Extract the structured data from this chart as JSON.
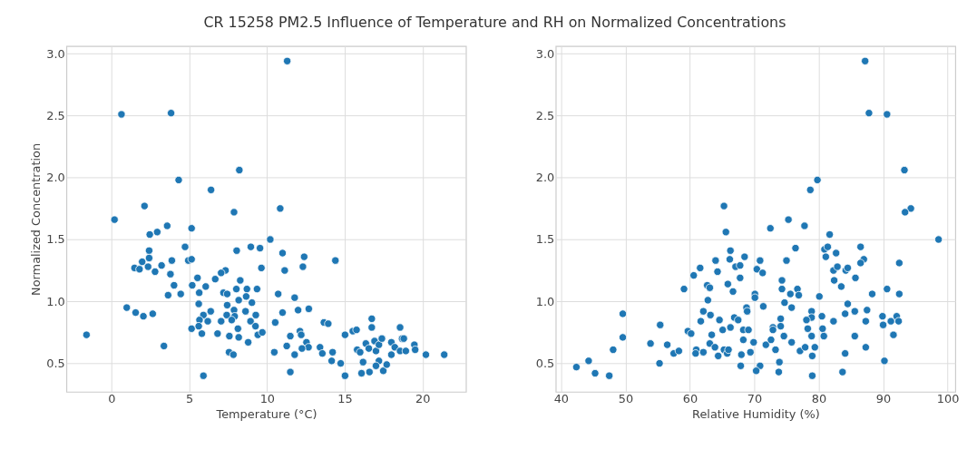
{
  "chart_data": [
    {
      "type": "scatter",
      "title": "CR 15258 PM2.5 Influence of Temperature and RH on Normalized Concentrations",
      "xlabel": "Temperature (°C)",
      "ylabel": "Normalized Concentration",
      "color": "#1f77b4",
      "marker": "circle",
      "grid": true,
      "xlim": [
        -2.9,
        22.8
      ],
      "xticks": [
        0,
        5,
        10,
        15,
        20
      ],
      "ylim": [
        0.27,
        3.06
      ],
      "yticks": [
        0.5,
        {
          "value": 1.0,
          "label": "1.0"
        },
        1.5,
        {
          "value": 2.0,
          "label": "2.0"
        },
        2.5,
        {
          "value": 3.0,
          "label": "3.0"
        }
      ],
      "x": [
        11.3,
        0.64,
        3.83,
        8.22,
        4.32,
        6.4,
        2.12,
        7.88,
        10.85,
        0.19,
        5.15,
        3.58,
        2.94,
        2.46,
        10.21,
        4.73,
        8.05,
        8.96,
        9.55,
        11.0,
        2.42,
        12.39,
        2.42,
        1.97,
        4.94,
        5.15,
        1.48,
        1.8,
        2.35,
        2.8,
        3.22,
        3.88,
        3.79,
        9.64,
        11.14,
        12.31,
        7.33,
        7.05,
        6.67,
        4.02,
        3.64,
        4.45,
        5.19,
        5.53,
        6.06,
        5.64,
        8.28,
        8.03,
        8.71,
        9.36,
        7.2,
        7.44,
        8.18,
        8.66,
        9.03,
        10.72,
        11.78,
        5.61,
        7.44,
        7.88,
        8.62,
        0.98,
        1.55,
        2.05,
        2.65,
        6.38,
        5.91,
        7.41,
        7.92,
        9.28,
        11.0,
        12.0,
        12.69,
        5.66,
        6.19,
        7.05,
        7.73,
        8.94,
        9.26,
        10.53,
        5.15,
        5.61,
        6.82,
        5.81,
        7.58,
        8.13,
        8.18,
        9.41,
        9.7,
        8.79,
        -1.61,
        3.37,
        7.56,
        7.84,
        10.47,
        5.91,
        11.5,
        12.12,
        12.2,
        11.27,
        11.78,
        12.54,
        12.67,
        12.25,
        11.5,
        13.66,
        13.94,
        14.4,
        13.41,
        13.56,
        14.22,
        14.16,
        14.74,
        15.02,
        15.02,
        15.52,
        15.76,
        15.8,
        15.99,
        16.18,
        16.08,
        16.36,
        16.55,
        16.59,
        16.74,
        16.74,
        16.92,
        17.01,
        17.2,
        17.39,
        17.2,
        17.01,
        17.48,
        17.7,
        18.0,
        18.0,
        18.22,
        18.56,
        18.69,
        18.8,
        18.56,
        18.93,
        19.48,
        19.53,
        20.22,
        21.4
      ],
      "values": [
        2.94,
        2.51,
        2.52,
        2.06,
        1.98,
        1.9,
        1.77,
        1.72,
        1.75,
        1.66,
        1.59,
        1.61,
        1.56,
        1.54,
        1.5,
        1.44,
        1.41,
        1.44,
        1.43,
        1.39,
        1.41,
        1.36,
        1.35,
        1.32,
        1.33,
        1.34,
        1.27,
        1.26,
        1.28,
        1.24,
        1.29,
        1.33,
        1.22,
        1.27,
        1.25,
        1.28,
        1.25,
        1.23,
        1.18,
        1.13,
        1.05,
        1.06,
        1.13,
        1.19,
        1.12,
        1.07,
        1.17,
        1.1,
        1.1,
        1.1,
        1.07,
        1.06,
        1.01,
        1.04,
        0.99,
        1.06,
        1.03,
        0.98,
        0.97,
        0.93,
        0.92,
        0.95,
        0.91,
        0.88,
        0.9,
        0.92,
        0.89,
        0.89,
        0.88,
        0.89,
        0.91,
        0.93,
        0.94,
        0.85,
        0.84,
        0.84,
        0.85,
        0.84,
        0.8,
        0.83,
        0.78,
        0.8,
        0.74,
        0.74,
        0.72,
        0.78,
        0.71,
        0.73,
        0.75,
        0.67,
        0.73,
        0.64,
        0.59,
        0.57,
        0.59,
        0.4,
        0.72,
        0.76,
        0.73,
        0.64,
        0.57,
        0.67,
        0.63,
        0.62,
        0.43,
        0.83,
        0.82,
        1.33,
        0.63,
        0.58,
        0.59,
        0.52,
        0.5,
        0.73,
        0.4,
        0.76,
        0.77,
        0.61,
        0.59,
        0.51,
        0.42,
        0.66,
        0.62,
        0.43,
        0.86,
        0.79,
        0.68,
        0.6,
        0.65,
        0.7,
        0.52,
        0.48,
        0.44,
        0.49,
        0.67,
        0.57,
        0.63,
        0.79,
        0.7,
        0.7,
        0.6,
        0.6,
        0.65,
        0.61,
        0.57,
        0.57
      ]
    },
    {
      "type": "scatter",
      "xlabel": "Relative Humidity (%)",
      "color": "#1f77b4",
      "marker": "circle",
      "grid": true,
      "xlim": [
        39.2,
        101.2
      ],
      "xticks": [
        40,
        50,
        60,
        70,
        80,
        90,
        100
      ],
      "ylim": [
        0.27,
        3.06
      ],
      "yticks": [
        0.5,
        {
          "value": 1.0,
          "label": "1.0"
        },
        1.5,
        {
          "value": 2.0,
          "label": "2.0"
        },
        2.5,
        {
          "value": 3.0,
          "label": "3.0"
        }
      ],
      "x": [
        42.4,
        44.3,
        45.3,
        47.5,
        48.1,
        49.6,
        49.6,
        53.9,
        55.4,
        55.3,
        56.5,
        57.5,
        58.3,
        59.1,
        59.7,
        60.2,
        60.6,
        61.6,
        61.0,
        60.9,
        62.1,
        61.7,
        62.1,
        62.7,
        63.1,
        62.8,
        63.2,
        63.4,
        63.1,
        63.9,
        64.0,
        64.3,
        64.6,
        65.1,
        64.4,
        65.3,
        65.8,
        66.0,
        65.3,
        65.6,
        66.3,
        66.2,
        67.1,
        67.8,
        65.9,
        66.7,
        67.8,
        66.9,
        67.5,
        66.3,
        68.5,
        68.3,
        69.1,
        68.3,
        68.0,
        67.9,
        68.8,
        68.9,
        69.9,
        69.4,
        87.2,
        87.8,
        90.6,
        93.3,
        79.8,
        78.7,
        94.3,
        93.4,
        75.3,
        72.5,
        77.8,
        81.7,
        98.6,
        76.4,
        80.9,
        81.4,
        81.1,
        82.7,
        86.5,
        75.0,
        70.9,
        70.4,
        71.3,
        87.0,
        86.5,
        92.5,
        82.3,
        82.9,
        84.2,
        84.5,
        85.7,
        82.4,
        83.5,
        74.3,
        74.3,
        76.7,
        75.6,
        76.9,
        80.1,
        88.3,
        90.6,
        92.5,
        70.1,
        70.1,
        71.4,
        74.7,
        75.8,
        78.9,
        78.9,
        80.5,
        82.3,
        84.1,
        84.5,
        85.6,
        87.5,
        87.3,
        89.9,
        90.0,
        91.2,
        92.1,
        92.4,
        91.6,
        85.6,
        87.3,
        74.1,
        74.1,
        72.9,
        72.9,
        74.6,
        75.8,
        78.1,
        78.3,
        78.9,
        80.6,
        80.8,
        71.8,
        72.6,
        73.3,
        77.1,
        77.9,
        79.4,
        79.0,
        84.1,
        90.2,
        73.9,
        70.9,
        70.3,
        73.8,
        79.0,
        83.7
      ],
      "values": [
        0.47,
        0.52,
        0.42,
        0.4,
        0.61,
        0.9,
        0.71,
        0.66,
        0.81,
        0.5,
        0.65,
        0.58,
        0.6,
        1.1,
        0.76,
        0.74,
        1.21,
        1.27,
        0.61,
        0.58,
        0.59,
        0.84,
        0.92,
        1.13,
        1.11,
        1.01,
        0.89,
        0.73,
        0.66,
        0.63,
        1.33,
        1.24,
        0.85,
        0.77,
        0.56,
        0.61,
        0.58,
        0.61,
        1.77,
        1.56,
        1.41,
        1.34,
        1.28,
        1.29,
        1.14,
        1.08,
        1.19,
        0.87,
        0.85,
        0.79,
        1.36,
        0.77,
        0.77,
        0.69,
        0.57,
        0.48,
        0.95,
        0.92,
        0.67,
        0.59,
        2.94,
        2.52,
        2.51,
        2.06,
        1.98,
        1.9,
        1.75,
        1.72,
        1.66,
        1.59,
        1.61,
        1.54,
        1.5,
        1.43,
        1.42,
        1.44,
        1.36,
        1.39,
        1.44,
        1.33,
        1.33,
        1.26,
        1.23,
        1.34,
        1.31,
        1.31,
        1.25,
        1.28,
        1.25,
        1.27,
        1.19,
        1.17,
        1.12,
        1.17,
        1.1,
        1.1,
        1.06,
        1.05,
        1.04,
        1.06,
        1.1,
        1.06,
        1.06,
        1.03,
        0.96,
        0.99,
        0.95,
        0.92,
        0.87,
        0.88,
        0.84,
        0.9,
        0.98,
        0.92,
        0.93,
        0.84,
        0.88,
        0.81,
        0.84,
        0.88,
        0.84,
        0.73,
        0.72,
        0.63,
        0.86,
        0.8,
        0.79,
        0.77,
        0.72,
        0.67,
        0.85,
        0.78,
        0.72,
        0.78,
        0.72,
        0.65,
        0.69,
        0.61,
        0.6,
        0.63,
        0.63,
        0.56,
        0.58,
        0.52,
        0.51,
        0.48,
        0.44,
        0.43,
        0.4,
        0.43
      ]
    }
  ]
}
